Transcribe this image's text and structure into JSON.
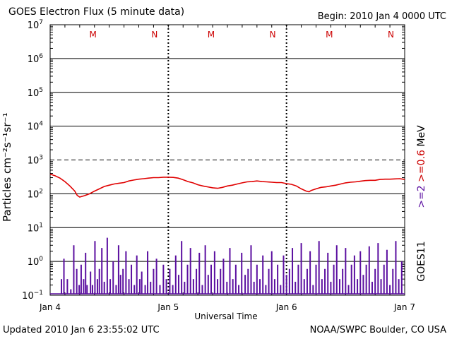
{
  "header": {
    "title": "GOES Electron Flux (5 minute data)",
    "begin": "Begin: 2010 Jan 4 0000 UTC"
  },
  "footer": {
    "updated": "Updated 2010 Jan  6 23:55:02 UTC",
    "credit": "NOAA/SWPC Boulder, CO USA"
  },
  "colors": {
    "energy_label": "#cc0000",
    "high_energy": "#5b0fa0",
    "flux_line": "#e00000",
    "markers": "#cc0000"
  },
  "chart_data": {
    "type": "line",
    "title": "GOES Electron Flux (5 minute data)",
    "xlabel": "Universal Time",
    "ylabel": "Particles cm⁻²s⁻¹sr⁻¹",
    "yscale": "log",
    "ylim": [
      0.1,
      10000000
    ],
    "xlim": [
      0,
      72
    ],
    "x_unit": "hours since 2010 Jan 4 0000 UTC",
    "grid": true,
    "threshold": 1000,
    "yticks": [
      {
        "base": "10",
        "exp": "7"
      },
      {
        "base": "10",
        "exp": "6"
      },
      {
        "base": "10",
        "exp": "5"
      },
      {
        "base": "10",
        "exp": "4"
      },
      {
        "base": "10",
        "exp": "3"
      },
      {
        "base": "10",
        "exp": "2"
      },
      {
        "base": "10",
        "exp": "1"
      },
      {
        "base": "10",
        "exp": "0"
      },
      {
        "base": "10",
        "exp": "−1"
      }
    ],
    "xticks": [
      {
        "label": "Jan 4",
        "x": 0
      },
      {
        "label": "Jan 5",
        "x": 24
      },
      {
        "label": "Jan 6",
        "x": 48
      },
      {
        "label": "Jan 7",
        "x": 72
      }
    ],
    "markers": [
      {
        "label": "M",
        "x": 8.7
      },
      {
        "label": "N",
        "x": 21.2
      },
      {
        "label": "M",
        "x": 32.7
      },
      {
        "label": "N",
        "x": 45.2
      },
      {
        "label": "M",
        "x": 56.7
      },
      {
        "label": "N",
        "x": 69.2
      }
    ],
    "right_label": {
      "high": ">=2",
      "low": ">=0.6",
      "unit": "MeV",
      "satellite": "GOES11"
    },
    "series": [
      {
        "name": ">=0.6 MeV",
        "color": "#e00000",
        "points": [
          [
            0,
            380
          ],
          [
            1,
            340
          ],
          [
            2,
            290
          ],
          [
            3,
            230
          ],
          [
            4,
            170
          ],
          [
            5,
            120
          ],
          [
            5.5,
            90
          ],
          [
            6,
            80
          ],
          [
            7,
            88
          ],
          [
            8,
            100
          ],
          [
            9,
            120
          ],
          [
            10,
            140
          ],
          [
            11,
            165
          ],
          [
            12,
            180
          ],
          [
            13,
            195
          ],
          [
            14,
            205
          ],
          [
            15,
            215
          ],
          [
            16,
            240
          ],
          [
            17,
            255
          ],
          [
            18,
            270
          ],
          [
            19,
            280
          ],
          [
            20,
            290
          ],
          [
            21,
            300
          ],
          [
            22,
            300
          ],
          [
            23,
            310
          ],
          [
            24,
            310
          ],
          [
            25,
            305
          ],
          [
            26,
            290
          ],
          [
            27,
            260
          ],
          [
            28,
            230
          ],
          [
            29,
            210
          ],
          [
            30,
            185
          ],
          [
            31,
            170
          ],
          [
            32,
            160
          ],
          [
            33,
            150
          ],
          [
            34,
            145
          ],
          [
            35,
            155
          ],
          [
            36,
            170
          ],
          [
            37,
            180
          ],
          [
            38,
            195
          ],
          [
            39,
            210
          ],
          [
            40,
            225
          ],
          [
            41,
            230
          ],
          [
            42,
            240
          ],
          [
            43,
            230
          ],
          [
            44,
            225
          ],
          [
            45,
            220
          ],
          [
            46,
            215
          ],
          [
            47,
            215
          ],
          [
            48,
            200
          ],
          [
            49,
            190
          ],
          [
            50,
            170
          ],
          [
            51,
            140
          ],
          [
            52,
            120
          ],
          [
            52.6,
            115
          ],
          [
            53,
            125
          ],
          [
            54,
            140
          ],
          [
            55,
            155
          ],
          [
            56,
            160
          ],
          [
            57,
            170
          ],
          [
            58,
            180
          ],
          [
            59,
            195
          ],
          [
            60,
            210
          ],
          [
            61,
            220
          ],
          [
            62,
            225
          ],
          [
            63,
            235
          ],
          [
            64,
            245
          ],
          [
            65,
            250
          ],
          [
            66,
            250
          ],
          [
            67,
            265
          ],
          [
            68,
            270
          ],
          [
            69,
            270
          ],
          [
            70,
            275
          ],
          [
            71,
            280
          ],
          [
            72,
            265
          ]
        ]
      },
      {
        "name": ">=2 MeV",
        "color": "#5b0fa0",
        "baseline": 0.1,
        "spikes": [
          [
            2.3,
            0.3
          ],
          [
            2.8,
            1.2
          ],
          [
            3.5,
            0.3
          ],
          [
            4.2,
            0.15
          ],
          [
            4.8,
            3.0
          ],
          [
            5.4,
            0.6
          ],
          [
            5.9,
            0.2
          ],
          [
            6.3,
            0.8
          ],
          [
            6.8,
            0.3
          ],
          [
            7.2,
            1.8
          ],
          [
            7.5,
            0.2
          ],
          [
            8.2,
            0.5
          ],
          [
            8.6,
            0.2
          ],
          [
            9.1,
            4.0
          ],
          [
            9.6,
            0.3
          ],
          [
            10.0,
            0.6
          ],
          [
            10.5,
            2.5
          ],
          [
            11.0,
            0.25
          ],
          [
            11.6,
            5.0
          ],
          [
            12.2,
            0.3
          ],
          [
            12.8,
            1.0
          ],
          [
            13.4,
            0.2
          ],
          [
            13.9,
            3.0
          ],
          [
            14.3,
            0.4
          ],
          [
            14.8,
            0.6
          ],
          [
            15.4,
            2.0
          ],
          [
            16.0,
            0.3
          ],
          [
            16.5,
            0.8
          ],
          [
            17.1,
            0.2
          ],
          [
            17.6,
            1.5
          ],
          [
            18.2,
            0.3
          ],
          [
            18.6,
            0.5
          ],
          [
            19.3,
            0.2
          ],
          [
            19.8,
            2.0
          ],
          [
            20.4,
            0.25
          ],
          [
            21.0,
            0.6
          ],
          [
            21.6,
            1.2
          ],
          [
            22.3,
            0.2
          ],
          [
            23.0,
            0.8
          ],
          [
            23.6,
            0.3
          ],
          [
            24.3,
            0.6
          ],
          [
            24.9,
            0.2
          ],
          [
            25.5,
            1.5
          ],
          [
            26.1,
            0.4
          ],
          [
            26.7,
            4.0
          ],
          [
            27.3,
            0.25
          ],
          [
            27.9,
            0.8
          ],
          [
            28.5,
            2.5
          ],
          [
            29.1,
            0.3
          ],
          [
            29.7,
            0.6
          ],
          [
            30.3,
            1.8
          ],
          [
            30.9,
            0.2
          ],
          [
            31.5,
            3.0
          ],
          [
            32.1,
            0.4
          ],
          [
            32.7,
            0.8
          ],
          [
            33.4,
            2.0
          ],
          [
            34.0,
            0.3
          ],
          [
            34.6,
            0.6
          ],
          [
            35.2,
            1.2
          ],
          [
            35.9,
            0.25
          ],
          [
            36.5,
            2.5
          ],
          [
            37.1,
            0.3
          ],
          [
            37.7,
            0.8
          ],
          [
            38.3,
            0.2
          ],
          [
            38.9,
            1.8
          ],
          [
            39.6,
            0.4
          ],
          [
            40.2,
            0.6
          ],
          [
            40.8,
            3.0
          ],
          [
            41.4,
            0.25
          ],
          [
            42.0,
            0.8
          ],
          [
            42.6,
            0.3
          ],
          [
            43.2,
            1.5
          ],
          [
            43.8,
            0.2
          ],
          [
            44.4,
            0.6
          ],
          [
            45.0,
            2.0
          ],
          [
            45.6,
            0.3
          ],
          [
            46.2,
            0.8
          ],
          [
            46.8,
            0.2
          ],
          [
            47.4,
            1.5
          ],
          [
            48.0,
            0.4
          ],
          [
            48.6,
            0.6
          ],
          [
            49.2,
            2.5
          ],
          [
            49.8,
            0.25
          ],
          [
            50.4,
            0.8
          ],
          [
            51.0,
            3.5
          ],
          [
            51.6,
            0.3
          ],
          [
            52.2,
            0.6
          ],
          [
            52.8,
            2.0
          ],
          [
            53.4,
            0.2
          ],
          [
            54.0,
            0.8
          ],
          [
            54.6,
            4.0
          ],
          [
            55.2,
            0.3
          ],
          [
            55.8,
            0.6
          ],
          [
            56.4,
            1.8
          ],
          [
            57.0,
            0.25
          ],
          [
            57.6,
            0.8
          ],
          [
            58.2,
            3.0
          ],
          [
            58.8,
            0.3
          ],
          [
            59.4,
            0.6
          ],
          [
            60.0,
            2.5
          ],
          [
            60.6,
            0.2
          ],
          [
            61.2,
            0.8
          ],
          [
            61.8,
            1.5
          ],
          [
            62.4,
            0.3
          ],
          [
            63.0,
            2.0
          ],
          [
            63.6,
            0.4
          ],
          [
            64.2,
            0.8
          ],
          [
            64.8,
            2.8
          ],
          [
            65.4,
            0.25
          ],
          [
            66.0,
            0.6
          ],
          [
            66.6,
            3.5
          ],
          [
            67.2,
            0.3
          ],
          [
            67.8,
            0.8
          ],
          [
            68.4,
            2.2
          ],
          [
            69.0,
            0.2
          ],
          [
            69.6,
            0.6
          ],
          [
            70.2,
            4.0
          ],
          [
            70.8,
            0.3
          ],
          [
            71.4,
            1.0
          ]
        ]
      }
    ]
  }
}
